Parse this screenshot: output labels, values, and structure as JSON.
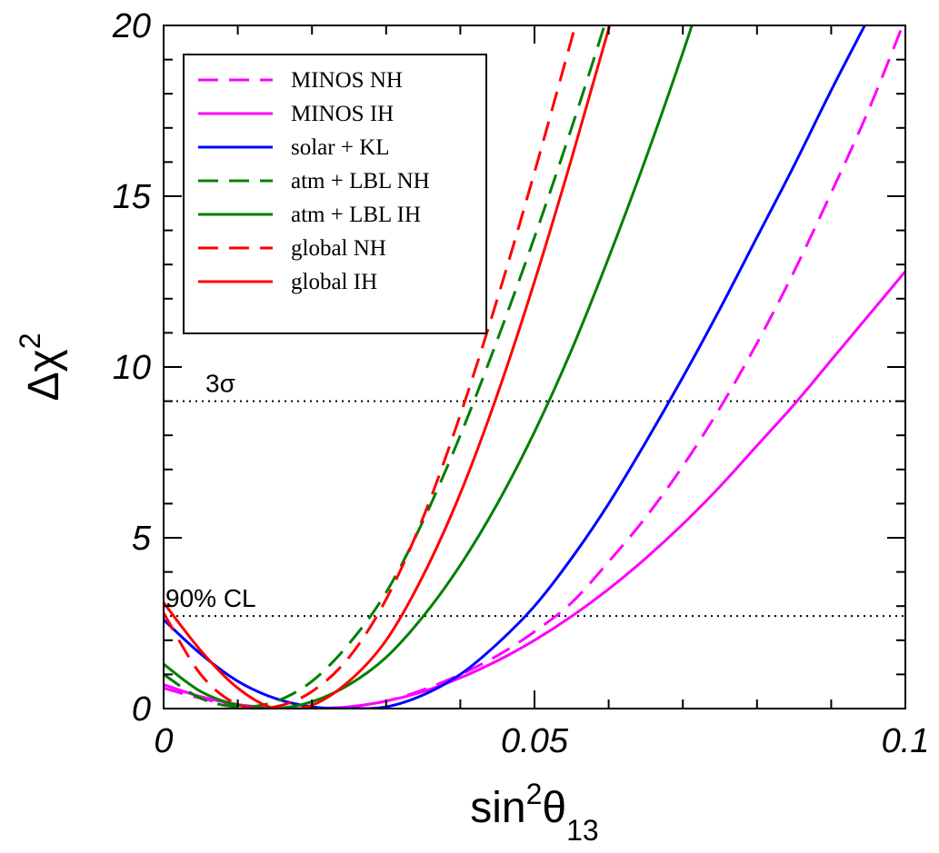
{
  "chart_data": {
    "type": "line",
    "xlabel": "sin²θ13",
    "ylabel": "Δχ²",
    "xlim": [
      0,
      0.1
    ],
    "ylim": [
      0,
      20
    ],
    "x_ticks": [
      {
        "value": 0,
        "label": "0"
      },
      {
        "value": 0.05,
        "label": "0.05"
      },
      {
        "value": 0.1,
        "label": "0.1"
      }
    ],
    "y_ticks": [
      {
        "value": 0,
        "label": "0"
      },
      {
        "value": 5,
        "label": "5"
      },
      {
        "value": 10,
        "label": "10"
      },
      {
        "value": 15,
        "label": "15"
      },
      {
        "value": 20,
        "label": "20"
      }
    ],
    "x_minor_step": 0.01,
    "y_minor_step": 1,
    "grid": false,
    "legend_position": "top-left",
    "reference_lines": [
      {
        "value": 9,
        "label": "3σ"
      },
      {
        "value": 2.71,
        "label": "90% CL"
      }
    ],
    "series": [
      {
        "name": "MINOS NH",
        "color": "#ff00ff",
        "dash": true,
        "x": [
          0,
          0.005,
          0.01,
          0.015,
          0.02,
          0.025,
          0.03,
          0.035,
          0.04,
          0.045,
          0.05,
          0.055,
          0.06,
          0.065,
          0.07,
          0.075,
          0.08,
          0.085,
          0.09,
          0.095,
          0.1
        ],
        "y": [
          0.6,
          0.3,
          0.1,
          0.02,
          0.0,
          0.05,
          0.22,
          0.55,
          1.0,
          1.55,
          2.25,
          3.1,
          4.3,
          5.6,
          7.1,
          8.8,
          10.7,
          12.8,
          15.1,
          17.5,
          20.2
        ]
      },
      {
        "name": "MINOS IH",
        "color": "#ff00ff",
        "dash": false,
        "x": [
          0,
          0.005,
          0.01,
          0.015,
          0.02,
          0.025,
          0.03,
          0.035,
          0.04,
          0.045,
          0.05,
          0.055,
          0.06,
          0.065,
          0.07,
          0.075,
          0.08,
          0.085,
          0.09,
          0.095,
          0.1
        ],
        "y": [
          0.7,
          0.35,
          0.12,
          0.02,
          0.0,
          0.05,
          0.22,
          0.5,
          0.9,
          1.4,
          2.0,
          2.7,
          3.5,
          4.4,
          5.4,
          6.5,
          7.7,
          8.9,
          10.2,
          11.5,
          12.8
        ]
      },
      {
        "name": "solar + KL",
        "color": "#0000ff",
        "dash": false,
        "x": [
          0,
          0.005,
          0.01,
          0.015,
          0.02,
          0.025,
          0.03,
          0.035,
          0.04,
          0.045,
          0.05,
          0.055,
          0.06,
          0.065,
          0.07,
          0.075,
          0.08,
          0.085,
          0.09,
          0.095,
          0.1
        ],
        "y": [
          2.6,
          1.6,
          0.8,
          0.3,
          0.05,
          0.0,
          0.05,
          0.4,
          1.0,
          1.9,
          3.0,
          4.4,
          6.0,
          7.8,
          9.7,
          11.7,
          13.8,
          15.9,
          18.1,
          20.2,
          22.3
        ]
      },
      {
        "name": "atm + LBL NH",
        "color": "#008000",
        "dash": true,
        "x": [
          0,
          0.005,
          0.01,
          0.015,
          0.02,
          0.025,
          0.03,
          0.035,
          0.04,
          0.045,
          0.05,
          0.055,
          0.06,
          0.065
        ],
        "y": [
          1.0,
          0.3,
          0.05,
          0.2,
          0.8,
          1.9,
          3.4,
          5.5,
          8.0,
          10.8,
          13.8,
          17.0,
          20.4,
          24.0
        ]
      },
      {
        "name": "atm + LBL IH",
        "color": "#008000",
        "dash": false,
        "x": [
          0,
          0.005,
          0.01,
          0.015,
          0.02,
          0.025,
          0.03,
          0.035,
          0.04,
          0.045,
          0.05,
          0.055,
          0.06,
          0.065,
          0.07,
          0.075
        ],
        "y": [
          1.3,
          0.5,
          0.1,
          0.0,
          0.2,
          0.7,
          1.5,
          2.7,
          4.2,
          6.0,
          8.1,
          10.5,
          13.2,
          16.1,
          19.2,
          22.5
        ]
      },
      {
        "name": "global NH",
        "color": "#ff0000",
        "dash": true,
        "x": [
          0,
          0.005,
          0.01,
          0.015,
          0.02,
          0.025,
          0.03,
          0.035,
          0.04,
          0.045,
          0.05,
          0.055,
          0.06
        ],
        "y": [
          2.8,
          1.0,
          0.12,
          0.05,
          0.5,
          1.5,
          3.2,
          5.6,
          8.6,
          12.0,
          15.7,
          19.6,
          23.5
        ]
      },
      {
        "name": "global IH",
        "color": "#ff0000",
        "dash": false,
        "x": [
          0,
          0.005,
          0.01,
          0.015,
          0.02,
          0.025,
          0.03,
          0.035,
          0.04,
          0.045,
          0.05,
          0.055,
          0.06,
          0.065
        ],
        "y": [
          3.1,
          1.7,
          0.6,
          0.0,
          0.1,
          0.8,
          2.0,
          3.9,
          6.3,
          9.2,
          12.5,
          16.1,
          19.9,
          23.9
        ]
      }
    ]
  }
}
